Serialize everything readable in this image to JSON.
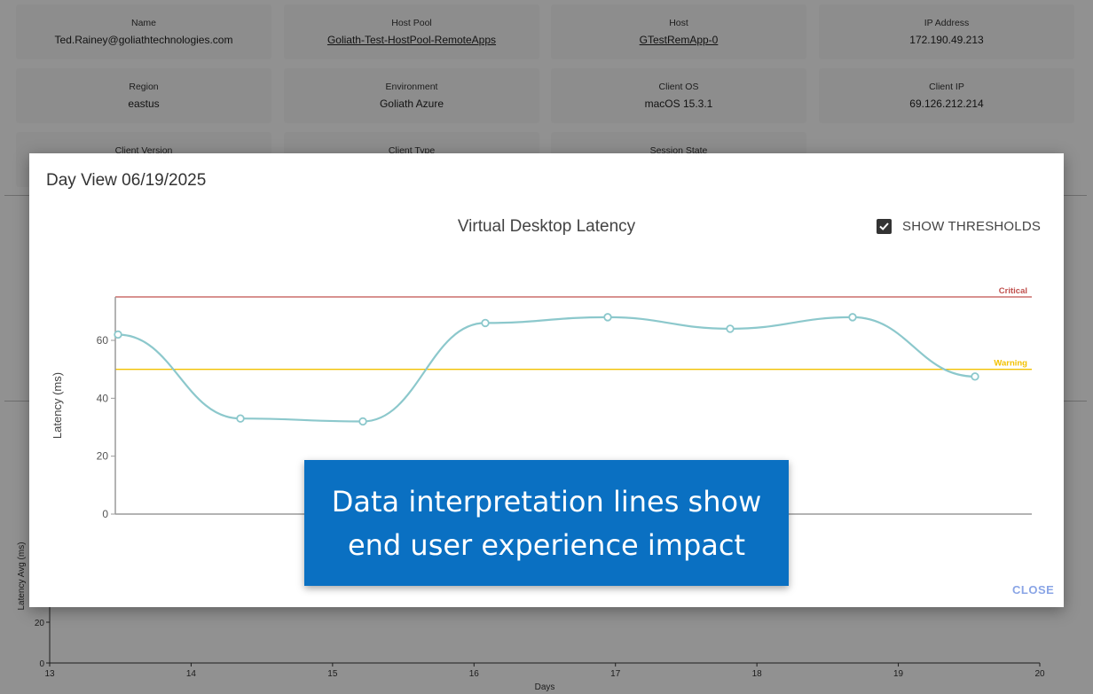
{
  "background": {
    "cards": [
      {
        "label": "Name",
        "value": "Ted.Rainey@goliathtechnologies.com",
        "link": false
      },
      {
        "label": "Host Pool",
        "value": "Goliath-Test-HostPool-RemoteApps",
        "link": true
      },
      {
        "label": "Host",
        "value": "GTestRemApp-0",
        "link": true
      },
      {
        "label": "IP Address",
        "value": "172.190.49.213",
        "link": false
      },
      {
        "label": "Region",
        "value": "eastus",
        "link": false
      },
      {
        "label": "Environment",
        "value": "Goliath Azure",
        "link": false
      },
      {
        "label": "Client OS",
        "value": "macOS 15.3.1",
        "link": false
      },
      {
        "label": "Client IP",
        "value": "69.126.212.214",
        "link": false
      },
      {
        "label": "Client Version",
        "value": "",
        "link": false
      },
      {
        "label": "Client Type",
        "value": "",
        "link": false
      },
      {
        "label": "Session State",
        "value": "",
        "link": false
      }
    ],
    "chart": {
      "ylabel": "Latency Avg (ms)",
      "xlabel": "Days",
      "x_ticks": [
        "13",
        "14",
        "15",
        "16",
        "17",
        "18",
        "19",
        "20"
      ],
      "y_ticks": [
        "0",
        "20"
      ]
    }
  },
  "dialog": {
    "title": "Day View 06/19/2025",
    "show_thresholds_label": "SHOW THRESHOLDS",
    "show_thresholds_checked": true,
    "close_label": "CLOSE"
  },
  "callout": {
    "line1": "Data interpretation lines show",
    "line2": "end user experience impact"
  },
  "chart_data": {
    "type": "line",
    "title": "Virtual Desktop Latency",
    "ylabel": "Latency (ms)",
    "xlabel": "",
    "ylim": [
      0,
      75
    ],
    "y_ticks": [
      0,
      20,
      40,
      60
    ],
    "series": [
      {
        "values": [
          62,
          33,
          32,
          66,
          68,
          64,
          68,
          47.5
        ],
        "color": "#8cc8cc"
      }
    ],
    "thresholds": [
      {
        "name": "Critical",
        "value": 75,
        "color": "#c0504d"
      },
      {
        "name": "Warning",
        "value": 50,
        "color": "#f2c100"
      }
    ],
    "grid": false
  }
}
